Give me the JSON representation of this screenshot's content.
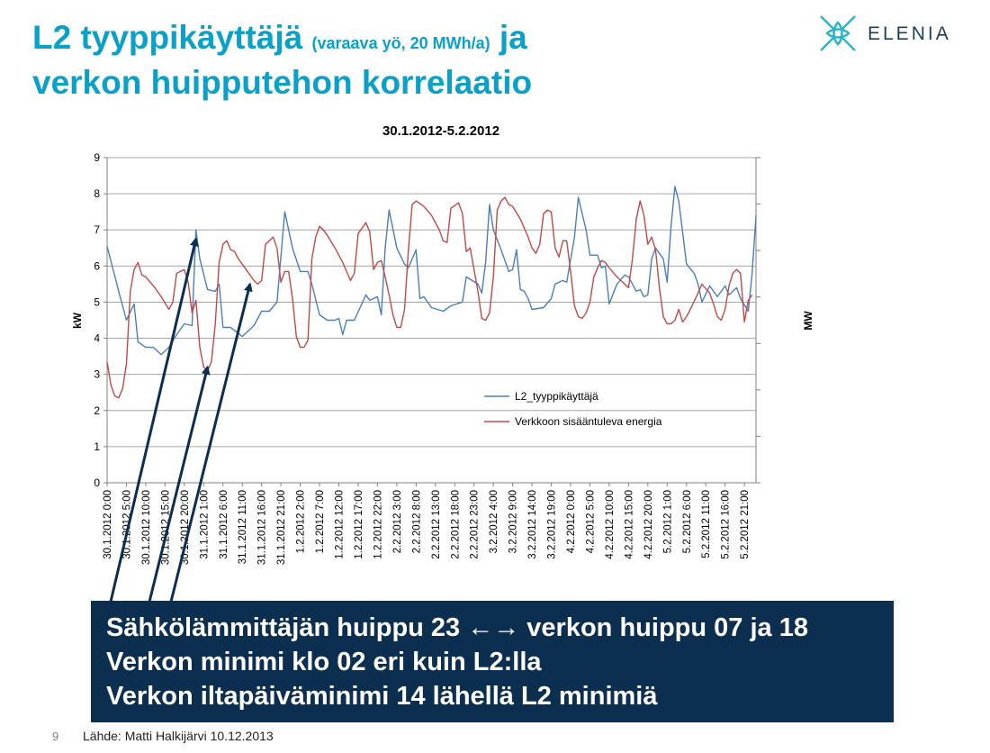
{
  "slide": {
    "title_part1": "L2 tyyppikäyttäjä",
    "title_sub": "(varaava yö, 20 MWh/a)",
    "title_part2": "ja",
    "title_line2": "verkon huipputehon korrelaatio",
    "logo_text": "ELENIA",
    "callout": [
      "Sähkölämmittäjän huippu 23 ←→ verkon huippu 07 ja 18",
      "Verkon minimi klo 02 eri kuin L2:lla",
      "Verkon iltapäiväminimi 14 lähellä L2 minimiä"
    ],
    "page_number": "9",
    "source": "Lähde: Matti Halkijärvi 10.12.2013"
  },
  "colors": {
    "title": "#0aa0c7",
    "callout_bg": "#0c2f4f",
    "series_l2": "#4a7ebb",
    "series_grid": "#be4b48",
    "arrow": "#0c2f4f",
    "logo": "#2fb5c8"
  },
  "chart_data": {
    "type": "line",
    "title": "30.1.2012-5.2.2012",
    "ylabel": "kW",
    "y2label": "MW",
    "ylim": [
      0,
      9
    ],
    "yticks": [
      0,
      1,
      2,
      3,
      4,
      5,
      6,
      7,
      8,
      9
    ],
    "legend_position": "center-right",
    "grid": true,
    "x_tick_labels": [
      "30.1.2012 0:00",
      "30.1.2012 5:00",
      "30.1.2012 10:00",
      "30.1.2012 15:00",
      "30.1.2012 20:00",
      "31.1.2012 1:00",
      "31.1.2012 6:00",
      "31.1.2012 11:00",
      "31.1.2012 16:00",
      "31.1.2012 21:00",
      "1.2.2012 2:00",
      "1.2.2012 7:00",
      "1.2.2012 12:00",
      "1.2.2012 17:00",
      "1.2.2012 22:00",
      "2.2.2012 3:00",
      "2.2.2012 8:00",
      "2.2.2012 13:00",
      "2.2.2012 18:00",
      "2.2.2012 23:00",
      "3.2.2012 4:00",
      "3.2.2012 9:00",
      "3.2.2012 14:00",
      "3.2.2012 19:00",
      "4.2.2012 0:00",
      "4.2.2012 5:00",
      "4.2.2012 10:00",
      "4.2.2012 15:00",
      "4.2.2012 20:00",
      "5.2.2012 1:00",
      "5.2.2012 6:00",
      "5.2.2012 11:00",
      "5.2.2012 16:00",
      "5.2.2012 21:00"
    ],
    "hours_total": 168,
    "series": [
      {
        "name": "L2_tyyppikäyttäjä",
        "color": "#4a7ebb",
        "points": [
          [
            0,
            6.55
          ],
          [
            3,
            5.3
          ],
          [
            5,
            4.5
          ],
          [
            7,
            4.95
          ],
          [
            8,
            3.9
          ],
          [
            10,
            3.75
          ],
          [
            12,
            3.75
          ],
          [
            14,
            3.55
          ],
          [
            16,
            3.75
          ],
          [
            18,
            4.1
          ],
          [
            20,
            4.4
          ],
          [
            22,
            4.35
          ],
          [
            23,
            7.0
          ],
          [
            24,
            6.2
          ],
          [
            26,
            5.35
          ],
          [
            28,
            5.3
          ],
          [
            29,
            5.5
          ],
          [
            30,
            4.3
          ],
          [
            32,
            4.3
          ],
          [
            35,
            4.05
          ],
          [
            38,
            4.35
          ],
          [
            40,
            4.75
          ],
          [
            42,
            4.75
          ],
          [
            44,
            5.0
          ],
          [
            46,
            7.5
          ],
          [
            48,
            6.5
          ],
          [
            50,
            5.85
          ],
          [
            52,
            5.85
          ],
          [
            53,
            5.5
          ],
          [
            55,
            4.65
          ],
          [
            57,
            4.5
          ],
          [
            59,
            4.5
          ],
          [
            60,
            4.55
          ],
          [
            61,
            4.1
          ],
          [
            62,
            4.5
          ],
          [
            64,
            4.5
          ],
          [
            67,
            5.2
          ],
          [
            68,
            5.05
          ],
          [
            70,
            5.15
          ],
          [
            71,
            4.65
          ],
          [
            72,
            6.5
          ],
          [
            73,
            7.55
          ],
          [
            75,
            6.5
          ],
          [
            77,
            6.05
          ],
          [
            78,
            5.95
          ],
          [
            80,
            6.45
          ],
          [
            81,
            5.1
          ],
          [
            82,
            5.15
          ],
          [
            84,
            4.85
          ],
          [
            87,
            4.75
          ],
          [
            89,
            4.9
          ],
          [
            92,
            5.0
          ],
          [
            93,
            5.7
          ],
          [
            96,
            5.5
          ],
          [
            97,
            5.25
          ],
          [
            98,
            6.1
          ],
          [
            99,
            7.7
          ],
          [
            100,
            7.0
          ],
          [
            102,
            6.45
          ],
          [
            104,
            5.85
          ],
          [
            105,
            5.9
          ],
          [
            106,
            6.45
          ],
          [
            107,
            5.35
          ],
          [
            108,
            5.3
          ],
          [
            109,
            5.1
          ],
          [
            110,
            4.8
          ],
          [
            113,
            4.85
          ],
          [
            115,
            5.1
          ],
          [
            116,
            5.5
          ],
          [
            118,
            5.6
          ],
          [
            119,
            5.55
          ],
          [
            121,
            6.8
          ],
          [
            122,
            7.9
          ],
          [
            124,
            7.0
          ],
          [
            125,
            6.3
          ],
          [
            127,
            6.3
          ],
          [
            128,
            5.95
          ],
          [
            129,
            6.0
          ],
          [
            130,
            4.95
          ],
          [
            132,
            5.5
          ],
          [
            134,
            5.75
          ],
          [
            135,
            5.7
          ],
          [
            137,
            5.3
          ],
          [
            138,
            5.35
          ],
          [
            139,
            5.15
          ],
          [
            140,
            5.2
          ],
          [
            141,
            6.2
          ],
          [
            142,
            6.5
          ],
          [
            144,
            6.2
          ],
          [
            145,
            5.55
          ],
          [
            146,
            7.1
          ],
          [
            147,
            8.2
          ],
          [
            148,
            7.8
          ],
          [
            150,
            6.05
          ],
          [
            152,
            5.8
          ],
          [
            153,
            5.5
          ],
          [
            154,
            5.0
          ],
          [
            156,
            5.45
          ],
          [
            157,
            5.3
          ],
          [
            158,
            5.15
          ],
          [
            160,
            5.45
          ],
          [
            161,
            5.2
          ],
          [
            163,
            5.4
          ],
          [
            164,
            5.1
          ],
          [
            166,
            4.75
          ],
          [
            167,
            5.8
          ],
          [
            168,
            7.4
          ]
        ]
      },
      {
        "name": "Verkkoon sisääntuleva energia",
        "color": "#be4b48",
        "points": [
          [
            0,
            3.35
          ],
          [
            1,
            2.7
          ],
          [
            2,
            2.4
          ],
          [
            3,
            2.35
          ],
          [
            4,
            2.6
          ],
          [
            5,
            3.3
          ],
          [
            6,
            5.3
          ],
          [
            7,
            5.9
          ],
          [
            8,
            6.1
          ],
          [
            9,
            5.75
          ],
          [
            10,
            5.7
          ],
          [
            12,
            5.45
          ],
          [
            14,
            5.15
          ],
          [
            16,
            4.8
          ],
          [
            17,
            5.0
          ],
          [
            18,
            5.8
          ],
          [
            20,
            5.9
          ],
          [
            21,
            5.55
          ],
          [
            22,
            4.7
          ],
          [
            23,
            5.05
          ],
          [
            24,
            3.75
          ],
          [
            25,
            3.2
          ],
          [
            26,
            3.1
          ],
          [
            27,
            3.35
          ],
          [
            28,
            4.4
          ],
          [
            29,
            6.1
          ],
          [
            30,
            6.6
          ],
          [
            31,
            6.7
          ],
          [
            32,
            6.45
          ],
          [
            33,
            6.4
          ],
          [
            34,
            6.2
          ],
          [
            36,
            5.9
          ],
          [
            38,
            5.6
          ],
          [
            39,
            5.5
          ],
          [
            40,
            5.6
          ],
          [
            41,
            6.6
          ],
          [
            43,
            6.8
          ],
          [
            44,
            6.5
          ],
          [
            45,
            5.55
          ],
          [
            46,
            5.85
          ],
          [
            47,
            5.85
          ],
          [
            48,
            5.1
          ],
          [
            49,
            4.05
          ],
          [
            50,
            3.75
          ],
          [
            51,
            3.75
          ],
          [
            52,
            3.95
          ],
          [
            53,
            6.2
          ],
          [
            54,
            6.8
          ],
          [
            55,
            7.1
          ],
          [
            56,
            7.0
          ],
          [
            57,
            6.85
          ],
          [
            59,
            6.5
          ],
          [
            61,
            6.1
          ],
          [
            62,
            5.85
          ],
          [
            63,
            5.6
          ],
          [
            64,
            5.8
          ],
          [
            65,
            6.9
          ],
          [
            67,
            7.2
          ],
          [
            68,
            6.95
          ],
          [
            69,
            5.9
          ],
          [
            70,
            6.1
          ],
          [
            71,
            6.15
          ],
          [
            72,
            5.7
          ],
          [
            73,
            5.2
          ],
          [
            74,
            4.65
          ],
          [
            75,
            4.3
          ],
          [
            76,
            4.3
          ],
          [
            77,
            4.8
          ],
          [
            78,
            6.45
          ],
          [
            79,
            7.7
          ],
          [
            80,
            7.8
          ],
          [
            82,
            7.65
          ],
          [
            84,
            7.4
          ],
          [
            86,
            7.0
          ],
          [
            87,
            6.7
          ],
          [
            88,
            6.65
          ],
          [
            89,
            7.6
          ],
          [
            91,
            7.75
          ],
          [
            92,
            7.45
          ],
          [
            93,
            6.4
          ],
          [
            94,
            6.5
          ],
          [
            95,
            5.9
          ],
          [
            96,
            5.3
          ],
          [
            97,
            4.55
          ],
          [
            98,
            4.5
          ],
          [
            99,
            4.7
          ],
          [
            100,
            5.7
          ],
          [
            101,
            7.55
          ],
          [
            102,
            7.8
          ],
          [
            103,
            7.9
          ],
          [
            104,
            7.7
          ],
          [
            105,
            7.65
          ],
          [
            107,
            7.3
          ],
          [
            109,
            6.8
          ],
          [
            110,
            6.5
          ],
          [
            111,
            6.35
          ],
          [
            112,
            6.6
          ],
          [
            113,
            7.45
          ],
          [
            114,
            7.55
          ],
          [
            115,
            7.5
          ],
          [
            116,
            6.5
          ],
          [
            117,
            6.25
          ],
          [
            118,
            6.7
          ],
          [
            119,
            6.7
          ],
          [
            120,
            5.85
          ],
          [
            121,
            4.9
          ],
          [
            122,
            4.6
          ],
          [
            123,
            4.55
          ],
          [
            124,
            4.7
          ],
          [
            125,
            5.0
          ],
          [
            126,
            5.7
          ],
          [
            127,
            5.95
          ],
          [
            128,
            6.15
          ],
          [
            129,
            6.1
          ],
          [
            130,
            5.95
          ],
          [
            132,
            5.7
          ],
          [
            134,
            5.5
          ],
          [
            135,
            5.4
          ],
          [
            136,
            6.2
          ],
          [
            137,
            7.3
          ],
          [
            138,
            7.8
          ],
          [
            139,
            7.4
          ],
          [
            140,
            6.6
          ],
          [
            141,
            6.8
          ],
          [
            142,
            6.45
          ],
          [
            143,
            5.4
          ],
          [
            144,
            4.6
          ],
          [
            145,
            4.4
          ],
          [
            146,
            4.4
          ],
          [
            147,
            4.5
          ],
          [
            148,
            4.8
          ],
          [
            149,
            4.45
          ],
          [
            150,
            4.6
          ],
          [
            151,
            4.8
          ],
          [
            153,
            5.25
          ],
          [
            154,
            5.5
          ],
          [
            156,
            5.25
          ],
          [
            157,
            4.95
          ],
          [
            158,
            4.6
          ],
          [
            159,
            4.5
          ],
          [
            160,
            4.8
          ],
          [
            161,
            5.45
          ],
          [
            162,
            5.8
          ],
          [
            163,
            5.9
          ],
          [
            164,
            5.8
          ],
          [
            165,
            4.45
          ],
          [
            166,
            5.05
          ],
          [
            167,
            5.2
          ]
        ]
      }
    ],
    "annotation_arrows": [
      {
        "target_hour": 23,
        "target_value": 6.75
      },
      {
        "target_hour": 26,
        "target_value": 3.2
      },
      {
        "target_hour": 37,
        "target_value": 5.5
      }
    ]
  }
}
